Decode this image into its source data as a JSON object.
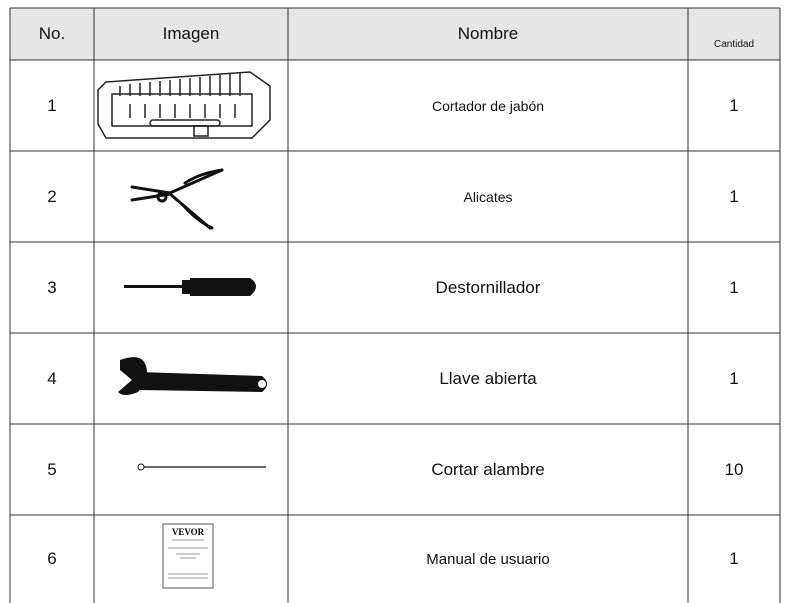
{
  "table": {
    "header": [
      "No.",
      "Imagen",
      "Nombre",
      "Cantidad"
    ],
    "rows": [
      [
        "1",
        "Cortador de jabón",
        "1"
      ],
      [
        "2",
        "Alicates",
        "1"
      ],
      [
        "3",
        "Destornillador",
        "1"
      ],
      [
        "4",
        "Llave abierta",
        "1"
      ],
      [
        "5",
        "Cortar alambre",
        "10"
      ],
      [
        "6",
        "Manual de usuario",
        "1"
      ]
    ],
    "manual_cover": {
      "brand": "VEVOR"
    }
  }
}
